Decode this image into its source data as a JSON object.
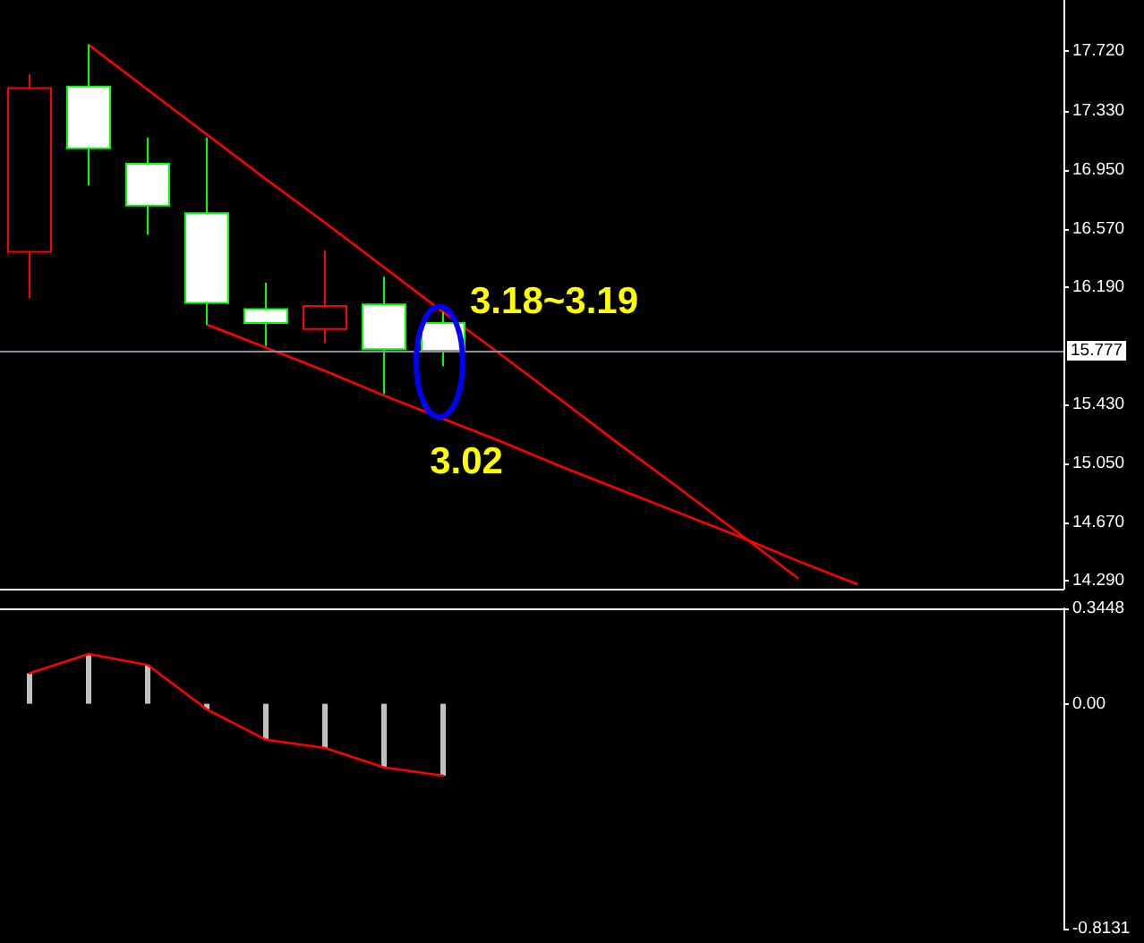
{
  "chart_data": [
    {
      "type": "candlestick",
      "categories": [
        null,
        null,
        null,
        null,
        null,
        null,
        null,
        null,
        null,
        null,
        null,
        null,
        null,
        null,
        null,
        null,
        null,
        null
      ],
      "ohlc": [
        [
          16.42,
          17.57,
          16.12,
          17.48
        ],
        [
          17.49,
          17.76,
          16.85,
          17.09
        ],
        [
          16.99,
          17.16,
          16.53,
          16.72
        ],
        [
          16.67,
          17.16,
          15.95,
          16.09
        ],
        [
          16.05,
          16.22,
          15.81,
          15.96
        ],
        [
          15.92,
          16.43,
          15.83,
          16.07
        ],
        [
          16.08,
          16.26,
          15.5,
          15.79
        ],
        [
          15.96,
          16.03,
          15.68,
          15.78
        ],
        null,
        null,
        null,
        null,
        null,
        null,
        null,
        null,
        null,
        null
      ],
      "colors": [
        "#ff0000",
        "#00ff00",
        "#00ff00",
        "#00ff00",
        "#00ff00",
        "#ff0000",
        "#00ff00",
        "#00ff00",
        null,
        null,
        null,
        null,
        null,
        null,
        null,
        null,
        null,
        null
      ],
      "series": [
        {
          "type": "line",
          "color": "#ff0000",
          "values": [
            null,
            17.76,
            17.47,
            17.18,
            16.89,
            16.61,
            16.32,
            16.03,
            15.75,
            15.46,
            15.17,
            14.89,
            14.6,
            14.31,
            null,
            null,
            null,
            null
          ]
        },
        {
          "type": "line",
          "color": "#ff0000",
          "values": [
            null,
            null,
            null,
            15.95,
            15.8,
            15.65,
            15.49,
            15.34,
            15.19,
            15.03,
            14.88,
            14.73,
            14.58,
            14.42,
            14.27,
            null,
            null,
            null
          ]
        }
      ],
      "ylim": [
        14.24,
        18.05
      ],
      "yticks": [
        {
          "value": 17.72,
          "label": "17.720"
        },
        {
          "value": 17.33,
          "label": "17.330"
        },
        {
          "value": 16.95,
          "label": "16.950"
        },
        {
          "value": 16.57,
          "label": "16.570"
        },
        {
          "value": 16.19,
          "label": "16.190"
        },
        {
          "value": 15.43,
          "label": "15.430"
        },
        {
          "value": 15.05,
          "label": "15.050"
        },
        {
          "value": 14.67,
          "label": "14.670"
        },
        {
          "value": 14.29,
          "label": "14.290"
        }
      ],
      "ref_lines": [
        {
          "axis": "y",
          "value": 15.777,
          "label": "15.777",
          "color": "#8c909a"
        }
      ],
      "annotations": [
        "3.18~3.19",
        "3.02"
      ],
      "tick_labels": "y",
      "marker": "none"
    },
    {
      "type": "bar",
      "categories": [
        null,
        null,
        null,
        null,
        null,
        null,
        null,
        null,
        null,
        null,
        null,
        null,
        null,
        null,
        null,
        null,
        null,
        null
      ],
      "series": [
        {
          "type": "bar",
          "color": "#c0c0c0",
          "values": [
            0.11,
            0.18,
            0.14,
            -0.02,
            -0.13,
            -0.16,
            -0.23,
            -0.26,
            null,
            null,
            null,
            null,
            null,
            null,
            null,
            null,
            null,
            null
          ]
        },
        {
          "type": "line",
          "color": "#ff0000",
          "values": [
            0.11,
            0.18,
            0.14,
            -0.02,
            -0.13,
            -0.16,
            -0.23,
            -0.26,
            null,
            null,
            null,
            null,
            null,
            null,
            null,
            null,
            null,
            null
          ]
        }
      ],
      "ylim": [
        -0.8131,
        0.3448
      ],
      "yticks": [
        0.3448,
        {
          "value": 0,
          "label": "0.00"
        },
        -0.8131
      ],
      "tick_labels": "y",
      "marker": "none"
    }
  ]
}
